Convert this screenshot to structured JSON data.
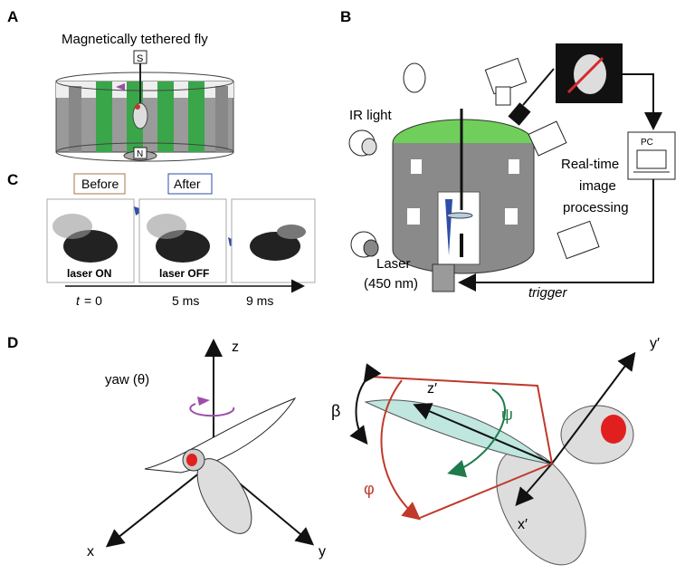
{
  "panels": {
    "a": {
      "letter": "A",
      "title": "Magnetically tethered fly",
      "magnet_top": "S",
      "magnet_bottom": "N"
    },
    "b": {
      "letter": "B",
      "ir_light": "IR light",
      "processing": [
        "Real-time",
        "image",
        "processing"
      ],
      "laser": [
        "Laser",
        "(450 nm)"
      ],
      "pc": "PC",
      "trigger": "trigger"
    },
    "c": {
      "letter": "C",
      "before": "Before",
      "after": "After",
      "laser_on": "laser ON",
      "laser_off": "laser OFF",
      "t_var": "t",
      "t_eq": "= 0",
      "t_5": "5 ms",
      "t_9": "9 ms"
    },
    "d": {
      "letter": "D",
      "z": "z",
      "x": "x",
      "y": "y",
      "yaw": "yaw (θ)",
      "z_prime": "z′",
      "y_prime": "y′",
      "x_prime": "x′",
      "beta": "β",
      "psi": "ψ",
      "phi": "φ"
    }
  },
  "colors": {
    "green": "#3aa64a",
    "purple": "#9b4fa8",
    "red": "#c0392b",
    "blue": "#2e4ea8",
    "teal": "#1f7a4c"
  }
}
